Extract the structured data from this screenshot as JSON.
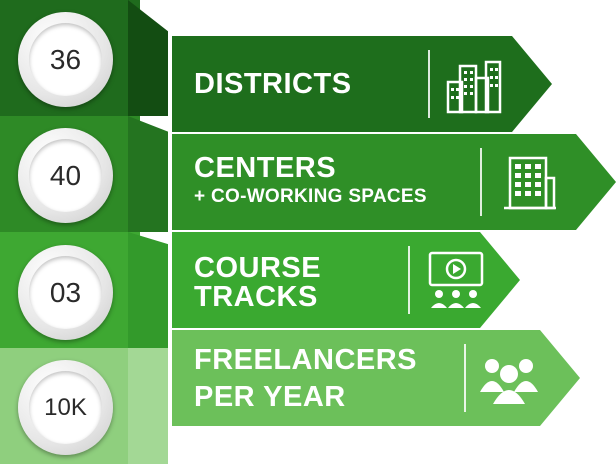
{
  "stats": [
    {
      "number": "36",
      "title": "DISTRICTS",
      "subtitle": "",
      "icon": "city-buildings-icon",
      "band_color": "#1f6b1d",
      "ribbon_color": "#1e6e1c"
    },
    {
      "number": "40",
      "title": "CENTERS",
      "subtitle": "+ CO-WORKING SPACES",
      "icon": "office-building-icon",
      "band_color": "#2e8a26",
      "ribbon_color": "#2f8f27"
    },
    {
      "number": "03",
      "title": "COURSE",
      "title2": "TRACKS",
      "icon": "video-class-icon",
      "band_color": "#3ea832",
      "ribbon_color": "#3aa930"
    },
    {
      "number": "10K",
      "title": "FREELANCERS",
      "title2": "PER YEAR",
      "icon": "people-group-icon",
      "band_color": "#72bf5f",
      "ribbon_color": "#6cc05a"
    }
  ]
}
